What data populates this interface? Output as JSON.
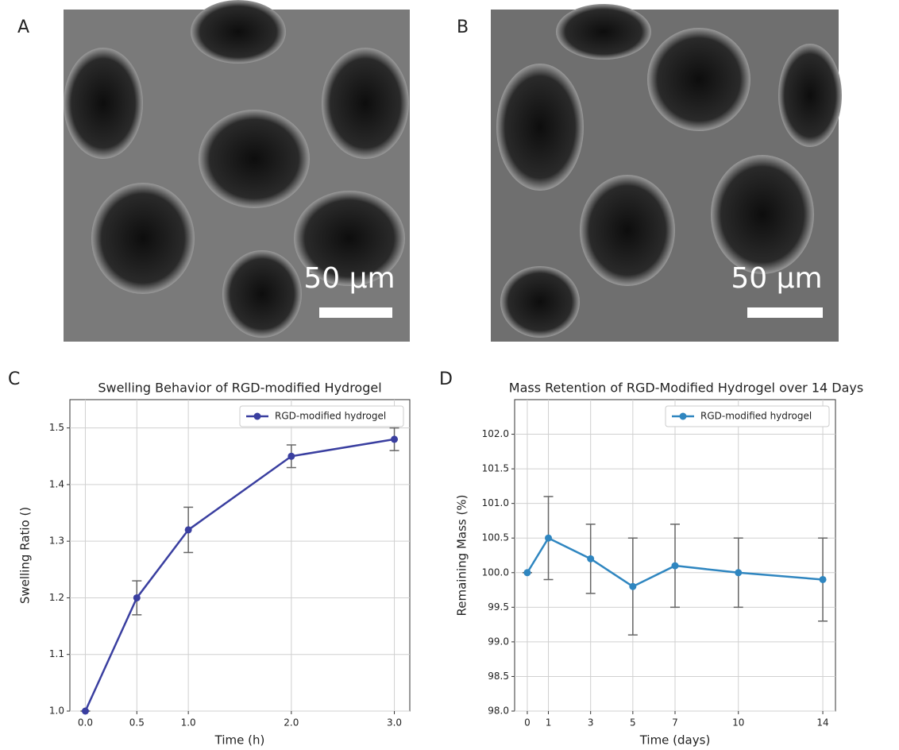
{
  "images": [
    {
      "panel_label": "A",
      "scale_bar": "50 µm"
    },
    {
      "panel_label": "B",
      "scale_bar": "50 µm"
    }
  ],
  "chart_data": [
    {
      "type": "line",
      "panel_label": "C",
      "title": "Swelling Behavior of RGD-modified Hydrogel",
      "xlabel": "Time (h)",
      "ylabel": "Swelling Ratio ()",
      "x": [
        0,
        0.5,
        1,
        2,
        3
      ],
      "series": [
        {
          "name": "RGD-modified hydrogel",
          "color": "#3a3fa0",
          "values": [
            1.0,
            1.2,
            1.32,
            1.45,
            1.48
          ],
          "errors": [
            0,
            0.03,
            0.04,
            0.02,
            0.02
          ]
        }
      ],
      "xlim": [
        -0.15,
        3.15
      ],
      "ylim": [
        1.0,
        1.55
      ],
      "xticks": [
        {
          "value": 0,
          "label": "0.0"
        },
        0.5,
        {
          "value": 1,
          "label": "1.0"
        },
        {
          "value": 2,
          "label": "2.0"
        },
        {
          "value": 3,
          "label": "3.0"
        }
      ],
      "yticks": [
        {
          "value": 1,
          "label": "1.0"
        },
        1.1,
        1.2,
        1.3,
        1.4,
        {
          "value": 1.5,
          "label": "1.5"
        }
      ],
      "grid": true,
      "legend": "upper right"
    },
    {
      "type": "line",
      "panel_label": "D",
      "title": "Mass Retention of RGD-Modified Hydrogel over 14 Days",
      "xlabel": "Time (days)",
      "ylabel": "Remaining Mass (%)",
      "x": [
        0,
        1,
        3,
        5,
        7,
        10,
        14
      ],
      "series": [
        {
          "name": "RGD-modified hydrogel",
          "color": "#2f86c0",
          "values": [
            100.0,
            100.5,
            100.2,
            99.8,
            100.1,
            100.0,
            99.9
          ],
          "errors": [
            0,
            0.6,
            0.5,
            0.7,
            0.6,
            0.5,
            0.6
          ]
        }
      ],
      "xlim": [
        -0.6,
        14.6
      ],
      "ylim": [
        98.0,
        102.5
      ],
      "xticks": [
        0,
        1,
        3,
        5,
        7,
        10,
        14
      ],
      "yticks": [
        {
          "value": 98,
          "label": "98.0"
        },
        98.5,
        {
          "value": 99,
          "label": "99.0"
        },
        99.5,
        {
          "value": 100,
          "label": "100.0"
        },
        100.5,
        {
          "value": 101,
          "label": "101.0"
        },
        101.5,
        {
          "value": 102,
          "label": "102.0"
        }
      ],
      "grid": true,
      "legend": "upper right"
    }
  ]
}
